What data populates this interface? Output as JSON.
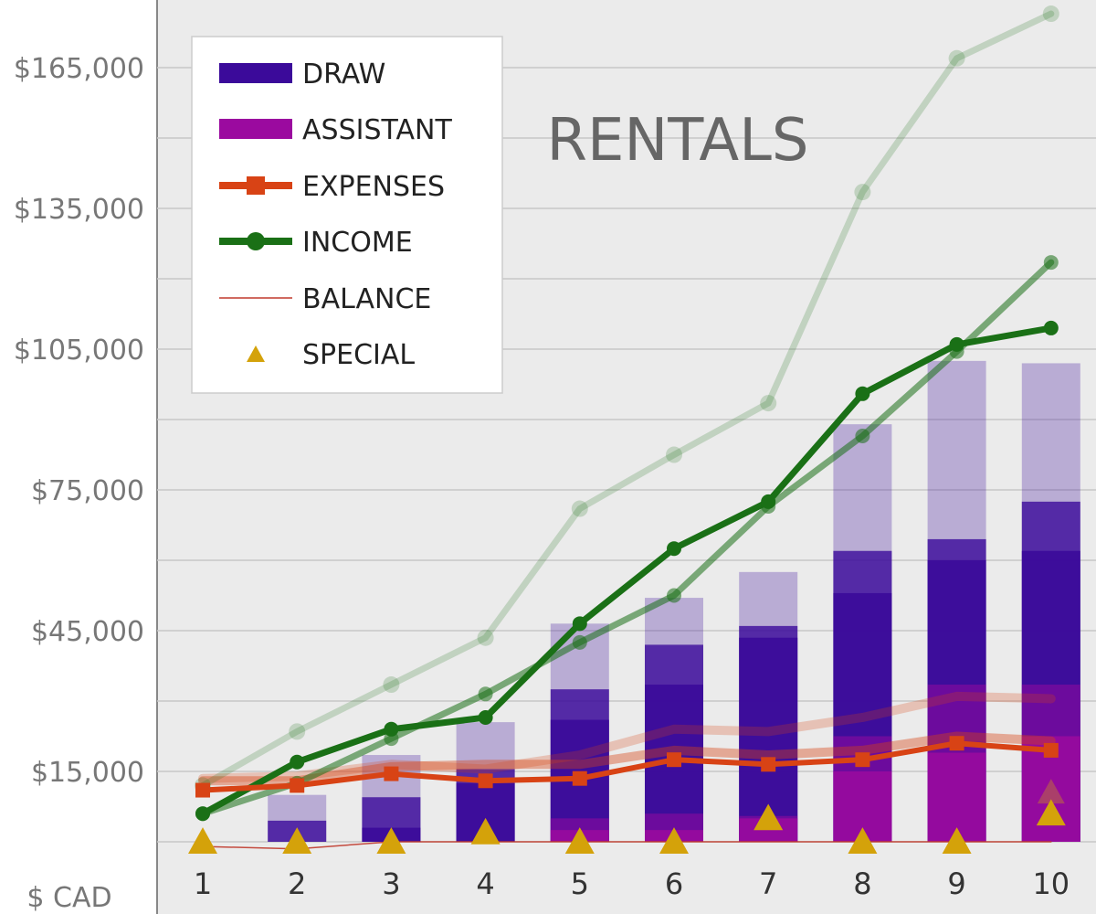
{
  "chart_data": {
    "type": "bar",
    "title": "RENTALS",
    "unit_label": "$ CAD",
    "x": [
      1,
      2,
      3,
      4,
      5,
      6,
      7,
      8,
      9,
      10
    ],
    "ylim": [
      0,
      175000
    ],
    "yticks": [
      15000,
      45000,
      75000,
      105000,
      135000,
      165000
    ],
    "ytick_labels": [
      "$15,000",
      "$45,000",
      "$75,000",
      "$105,000",
      "$135,000",
      "$165,000"
    ],
    "grid": true,
    "legend_position": "top-left",
    "colors": {
      "draw": "#3b0a9a",
      "assistant": "#9b0a9f",
      "expenses": "#d84315",
      "income": "#1a7016",
      "balance": "#c0392b",
      "special": "#d4a20a",
      "background": "#ebebeb",
      "grid": "#c8c8c8"
    },
    "legend": [
      {
        "name": "DRAW",
        "marker": "bar"
      },
      {
        "name": "ASSISTANT",
        "marker": "bar"
      },
      {
        "name": "EXPENSES",
        "marker": "line-square"
      },
      {
        "name": "INCOME",
        "marker": "line-circle"
      },
      {
        "name": "BALANCE",
        "marker": "thin-line"
      },
      {
        "name": "SPECIAL",
        "marker": "triangle"
      }
    ],
    "draw_total": [
      0,
      10000,
      18500,
      25500,
      46500,
      52000,
      57500,
      89000,
      102500,
      102000
    ],
    "draw_actual": [
      0,
      4500,
      9500,
      15500,
      32500,
      42000,
      46000,
      62000,
      64500,
      72500
    ],
    "draw_lower": [
      0,
      0,
      3000,
      12500,
      26000,
      33500,
      43500,
      53000,
      60000,
      62000
    ],
    "assistant_total": [
      0,
      0,
      0,
      0,
      5000,
      6000,
      5500,
      22500,
      33500,
      33500
    ],
    "assistant_lower": [
      0,
      0,
      0,
      0,
      2500,
      2500,
      5000,
      15000,
      19000,
      22500
    ],
    "income": [
      6000,
      17000,
      24000,
      26500,
      46500,
      62500,
      72500,
      95500,
      106000,
      109500
    ],
    "income_trend": [
      6000,
      12500,
      22000,
      31500,
      42500,
      52500,
      71500,
      86500,
      104500,
      123500
    ],
    "income_projection": [
      12000,
      23500,
      33500,
      43500,
      71000,
      82500,
      93500,
      138500,
      167000,
      176500
    ],
    "expenses": [
      11000,
      12000,
      14500,
      13000,
      13500,
      17500,
      16500,
      17500,
      21000,
      19500
    ],
    "expenses_band": [
      13000,
      13000,
      16000,
      16500,
      16500,
      19500,
      18500,
      19500,
      22500,
      21500
    ],
    "expenses_projection": [
      13500,
      14000,
      16500,
      15500,
      18500,
      24000,
      23500,
      26500,
      31000,
      30500
    ],
    "balance": [
      -1000,
      -1500,
      0,
      0,
      0,
      0,
      0,
      0,
      0,
      0
    ],
    "special": [
      -500,
      -500,
      -500,
      1500,
      -500,
      -500,
      4500,
      -500,
      -500,
      5500
    ],
    "special_extra": [
      null,
      null,
      null,
      null,
      null,
      null,
      null,
      null,
      null,
      10000
    ]
  }
}
